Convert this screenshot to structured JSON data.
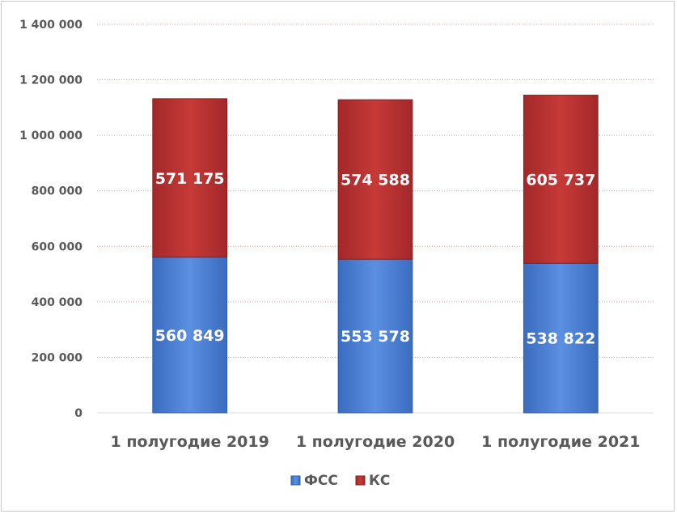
{
  "chart_data": {
    "type": "bar",
    "stacked": true,
    "categories": [
      "1 полугодие 2019",
      "1 полугодие 2020",
      "1 полугодие 2021"
    ],
    "series": [
      {
        "name": "ФСС",
        "color": "#4a7ed3",
        "values": [
          560849,
          553578,
          538822
        ],
        "labels": [
          "560 849",
          "553 578",
          "538 822"
        ]
      },
      {
        "name": "КС",
        "color": "#b8312f",
        "values": [
          571175,
          574588,
          605737
        ],
        "labels": [
          "571 175",
          "574 588",
          "605 737"
        ]
      }
    ],
    "ylim": [
      0,
      1400000
    ],
    "yticks": [
      0,
      200000,
      400000,
      600000,
      800000,
      1000000,
      1200000,
      1400000
    ],
    "ytick_labels": [
      "0",
      "200 000",
      "400 000",
      "600 000",
      "800 000",
      "1 000 000",
      "1 200 000",
      "1 400 000"
    ],
    "grid": true,
    "legend_position": "bottom"
  }
}
